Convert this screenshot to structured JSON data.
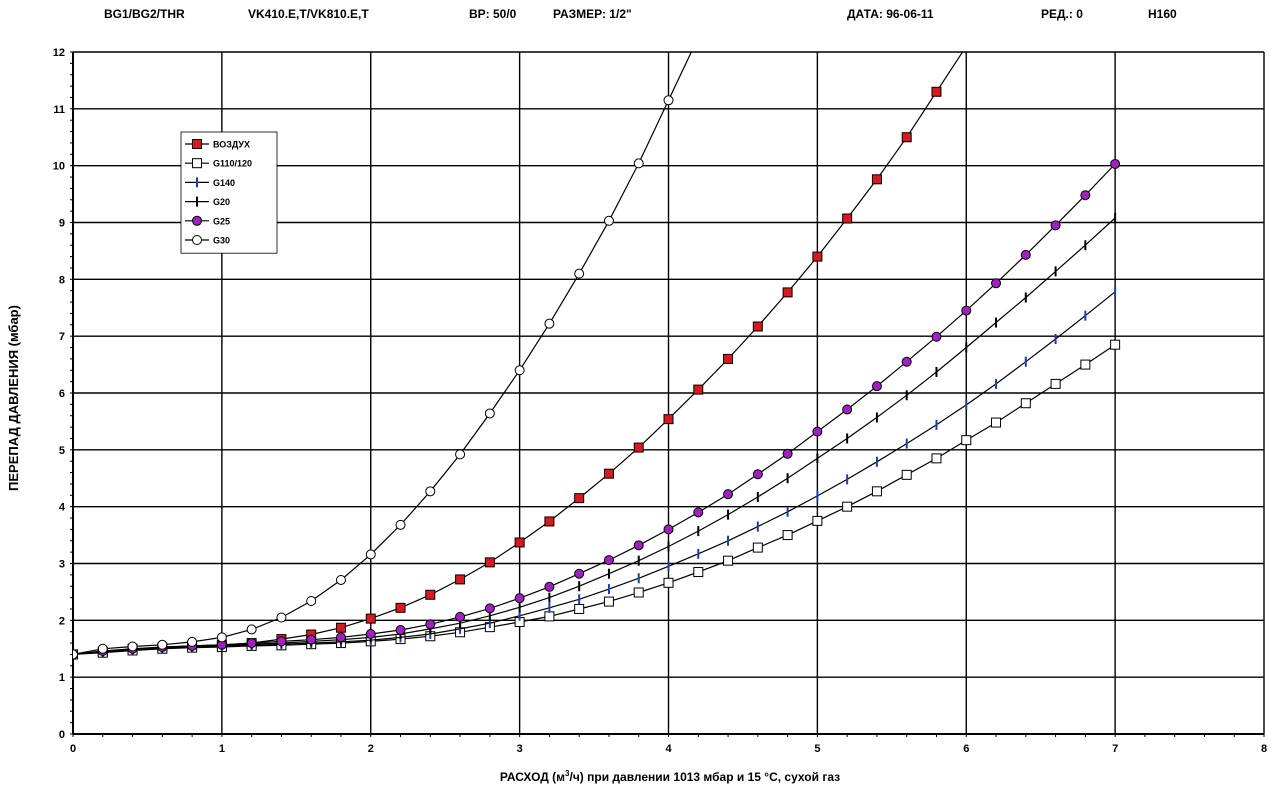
{
  "header": {
    "model": "BG1/BG2/THR",
    "valve": "VK410.E,T/VK810.E,T",
    "bp": "BP: 50/0",
    "size": "РАЗМЕР: 1/2\"",
    "date": "ДАТА: 96-06-11",
    "rev": "РЕД.: 0",
    "code": "H160"
  },
  "chart_data": {
    "type": "line",
    "title": "",
    "xlabel_prefix": "РАСХОД (м",
    "xlabel_sup": "3",
    "xlabel_suffix": "/ч) при давлении 1013 мбар и 15 °C, сухой газ",
    "ylabel": "ПЕРЕПАД ДАВЛЕНИЯ (мбар)",
    "xlim": [
      0,
      8
    ],
    "ylim": [
      0,
      12
    ],
    "xticks": [
      "0",
      "1",
      "2",
      "3",
      "4",
      "5",
      "6",
      "7",
      "8"
    ],
    "yticks": [
      "0",
      "1",
      "2",
      "3",
      "4",
      "5",
      "6",
      "7",
      "8",
      "9",
      "10",
      "11",
      "12"
    ],
    "grid": true,
    "legend_position": "top-left",
    "x": [
      0,
      0.2,
      0.4,
      0.6,
      0.8,
      1.0,
      1.2,
      1.4,
      1.6,
      1.8,
      2.0,
      2.2,
      2.4,
      2.6,
      2.8,
      3.0,
      3.2,
      3.4,
      3.6,
      3.8,
      4.0,
      4.2,
      4.4,
      4.6,
      4.8,
      5.0,
      5.2,
      5.4,
      5.6,
      5.8,
      6.0,
      6.2,
      6.4,
      6.6,
      6.8,
      7.0
    ],
    "series": [
      {
        "name": "ВОЗДУХ",
        "marker": "square-filled",
        "color": "#d71920",
        "values": [
          1.4,
          1.45,
          1.5,
          1.52,
          1.55,
          1.57,
          1.6,
          1.67,
          1.75,
          1.87,
          2.03,
          2.22,
          2.45,
          2.72,
          3.02,
          3.37,
          3.74,
          4.15,
          4.58,
          5.04,
          5.54,
          6.06,
          6.6,
          7.17,
          7.77,
          8.4,
          9.07,
          9.76,
          10.5,
          11.3,
          null,
          null,
          null,
          null,
          null,
          null
        ]
      },
      {
        "name": "G110/120",
        "marker": "square-open",
        "color": "#ffffff",
        "values": [
          1.4,
          1.43,
          1.47,
          1.5,
          1.52,
          1.53,
          1.55,
          1.56,
          1.58,
          1.6,
          1.63,
          1.67,
          1.72,
          1.79,
          1.88,
          1.97,
          2.07,
          2.2,
          2.33,
          2.49,
          2.66,
          2.85,
          3.05,
          3.28,
          3.5,
          3.75,
          4.0,
          4.27,
          4.56,
          4.85,
          5.17,
          5.48,
          5.82,
          6.16,
          6.5,
          6.85
        ]
      },
      {
        "name": "G140",
        "marker": "tick-blue",
        "color": "#1b3fa8",
        "values": [
          1.4,
          1.44,
          1.48,
          1.51,
          1.53,
          1.55,
          1.56,
          1.58,
          1.6,
          1.62,
          1.65,
          1.7,
          1.76,
          1.85,
          1.95,
          2.08,
          2.22,
          2.37,
          2.55,
          2.74,
          2.95,
          3.17,
          3.4,
          3.65,
          3.91,
          4.19,
          4.48,
          4.79,
          5.11,
          5.44,
          5.79,
          6.16,
          6.55,
          6.95,
          7.36,
          7.78
        ]
      },
      {
        "name": "G20",
        "marker": "tick-black",
        "color": "#000000",
        "values": [
          1.4,
          1.45,
          1.49,
          1.52,
          1.54,
          1.56,
          1.58,
          1.6,
          1.63,
          1.66,
          1.7,
          1.76,
          1.85,
          1.95,
          2.08,
          2.23,
          2.4,
          2.6,
          2.82,
          3.05,
          3.3,
          3.57,
          3.86,
          4.17,
          4.5,
          4.85,
          5.2,
          5.57,
          5.96,
          6.37,
          6.8,
          7.24,
          7.68,
          8.14,
          8.6,
          9.08
        ]
      },
      {
        "name": "G25",
        "marker": "circle-filled",
        "color": "#a020c0",
        "values": [
          1.4,
          1.46,
          1.5,
          1.53,
          1.55,
          1.57,
          1.6,
          1.63,
          1.66,
          1.7,
          1.76,
          1.83,
          1.93,
          2.06,
          2.21,
          2.39,
          2.59,
          2.82,
          3.06,
          3.32,
          3.6,
          3.9,
          4.22,
          4.57,
          4.93,
          5.32,
          5.71,
          6.12,
          6.55,
          6.99,
          7.45,
          7.93,
          8.43,
          8.95,
          9.48,
          10.03
        ]
      },
      {
        "name": "G30",
        "marker": "circle-open",
        "color": "#ffffff",
        "values": [
          1.4,
          1.5,
          1.54,
          1.57,
          1.62,
          1.7,
          1.84,
          2.05,
          2.34,
          2.71,
          3.16,
          3.68,
          4.27,
          4.92,
          5.64,
          6.4,
          7.22,
          8.1,
          9.03,
          10.04,
          11.15,
          null,
          null,
          null,
          null,
          null,
          null,
          null,
          null,
          null,
          null,
          null,
          null,
          null,
          null,
          null
        ]
      }
    ]
  }
}
